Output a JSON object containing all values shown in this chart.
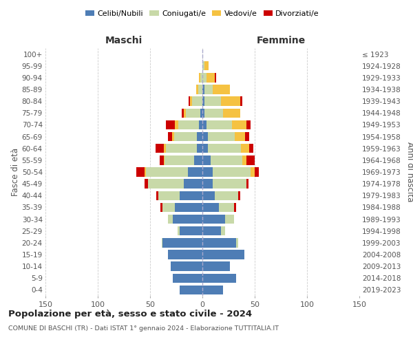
{
  "age_groups": [
    "0-4",
    "5-9",
    "10-14",
    "15-19",
    "20-24",
    "25-29",
    "30-34",
    "35-39",
    "40-44",
    "45-49",
    "50-54",
    "55-59",
    "60-64",
    "65-69",
    "70-74",
    "75-79",
    "80-84",
    "85-89",
    "90-94",
    "95-99",
    "100+"
  ],
  "birth_years": [
    "2019-2023",
    "2014-2018",
    "2009-2013",
    "2004-2008",
    "1999-2003",
    "1994-1998",
    "1989-1993",
    "1984-1988",
    "1979-1983",
    "1974-1978",
    "1969-1973",
    "1964-1968",
    "1959-1963",
    "1954-1958",
    "1949-1953",
    "1944-1948",
    "1939-1943",
    "1934-1938",
    "1929-1933",
    "1924-1928",
    "≤ 1923"
  ],
  "colors": {
    "celibi": "#4e7db5",
    "coniugati": "#c8d9a8",
    "vedovi": "#f5c242",
    "divorziati": "#cc0000"
  },
  "maschi": {
    "celibi": [
      22,
      28,
      30,
      33,
      38,
      22,
      28,
      26,
      22,
      18,
      14,
      8,
      5,
      5,
      3,
      2,
      0,
      0,
      0,
      0,
      0
    ],
    "coniugati": [
      0,
      0,
      0,
      0,
      1,
      2,
      5,
      12,
      20,
      34,
      40,
      28,
      30,
      22,
      20,
      14,
      10,
      4,
      2,
      0,
      0
    ],
    "vedovi": [
      0,
      0,
      0,
      0,
      0,
      0,
      0,
      0,
      0,
      0,
      1,
      1,
      2,
      2,
      3,
      2,
      2,
      2,
      1,
      0,
      0
    ],
    "divorziati": [
      0,
      0,
      0,
      0,
      0,
      0,
      0,
      2,
      2,
      3,
      8,
      4,
      8,
      4,
      9,
      2,
      1,
      0,
      0,
      0,
      0
    ]
  },
  "femmine": {
    "celibi": [
      20,
      32,
      26,
      40,
      32,
      18,
      22,
      16,
      12,
      10,
      10,
      8,
      5,
      5,
      4,
      2,
      2,
      2,
      0,
      0,
      0
    ],
    "coniugati": [
      0,
      0,
      0,
      0,
      2,
      4,
      8,
      14,
      22,
      32,
      36,
      30,
      32,
      26,
      24,
      18,
      16,
      8,
      4,
      2,
      0
    ],
    "vedovi": [
      0,
      0,
      0,
      0,
      0,
      0,
      0,
      0,
      0,
      0,
      4,
      4,
      8,
      10,
      14,
      16,
      18,
      16,
      8,
      4,
      0
    ],
    "divorziati": [
      0,
      0,
      0,
      0,
      0,
      0,
      0,
      2,
      2,
      2,
      4,
      8,
      4,
      4,
      4,
      0,
      2,
      0,
      1,
      0,
      0
    ]
  },
  "title": "Popolazione per età, sesso e stato civile - 2024",
  "subtitle": "COMUNE DI BASCHI (TR) - Dati ISTAT 1° gennaio 2024 - Elaborazione TUTTITALIA.IT",
  "xlabel_left": "Maschi",
  "xlabel_right": "Femmine",
  "ylabel_left": "Fasce di età",
  "ylabel_right": "Anni di nascita",
  "xlim": 150,
  "legend_labels": [
    "Celibi/Nubili",
    "Coniugati/e",
    "Vedovi/e",
    "Divorziati/e"
  ],
  "background_color": "#ffffff"
}
